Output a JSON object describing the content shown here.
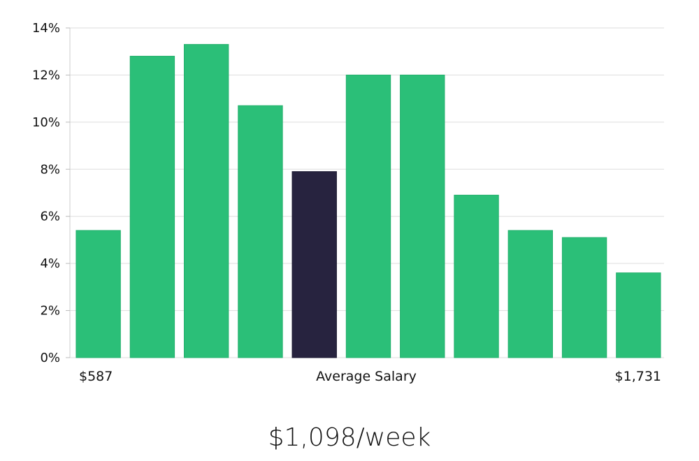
{
  "chart_data": {
    "type": "bar",
    "values": [
      5.4,
      12.8,
      13.3,
      10.7,
      7.9,
      12.0,
      12.0,
      6.9,
      5.4,
      5.1,
      3.6
    ],
    "highlight_index": 4,
    "ylim": [
      0,
      14
    ],
    "yticks": [
      "0%",
      "2%",
      "4%",
      "6%",
      "8%",
      "10%",
      "12%",
      "14%"
    ],
    "ytick_values": [
      0,
      2,
      4,
      6,
      8,
      10,
      12,
      14
    ],
    "grid": true,
    "colors": {
      "bar": "#2bbf78",
      "highlight": "#27233f",
      "grid": "#dddddd"
    },
    "xlabels": {
      "left": "$587",
      "center": "Average Salary",
      "right": "$1,731"
    }
  },
  "summary": {
    "salary": "$1,098/week"
  }
}
